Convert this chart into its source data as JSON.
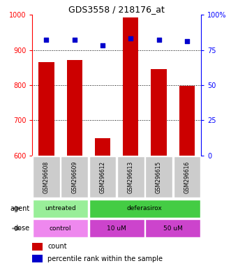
{
  "title": "GDS3558 / 218176_at",
  "samples": [
    "GSM296608",
    "GSM296609",
    "GSM296612",
    "GSM296613",
    "GSM296615",
    "GSM296616"
  ],
  "counts": [
    865,
    872,
    650,
    993,
    845,
    798
  ],
  "percentiles": [
    82,
    82,
    78,
    83,
    82,
    81
  ],
  "ylim_left": [
    600,
    1000
  ],
  "ylim_right": [
    0,
    100
  ],
  "yticks_left": [
    600,
    700,
    800,
    900,
    1000
  ],
  "yticks_right": [
    0,
    25,
    50,
    75,
    100
  ],
  "ytick_right_labels": [
    "0",
    "25",
    "50",
    "75",
    "100%"
  ],
  "bar_color": "#cc0000",
  "dot_color": "#0000cc",
  "bar_bottom": 600,
  "gridlines": [
    700,
    800,
    900
  ],
  "agent_untreated_color": "#99ee99",
  "agent_deferasirox_color": "#44cc44",
  "dose_control_color": "#ee88ee",
  "dose_uM_color": "#cc44cc",
  "sample_bg_color": "#cccccc",
  "legend_count_color": "#cc0000",
  "legend_dot_color": "#0000cc"
}
